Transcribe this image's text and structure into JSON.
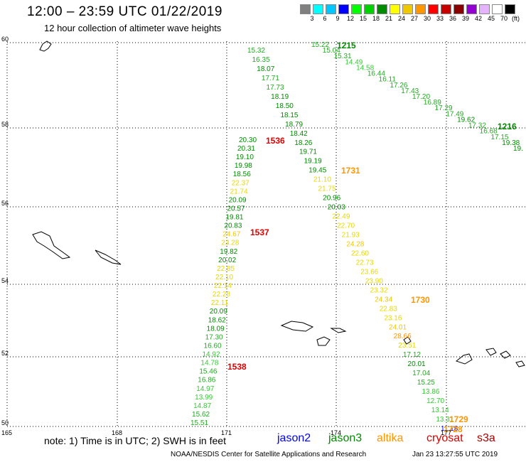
{
  "header": {
    "title": "12:00 – 23:59 UTC 01/22/2019",
    "subtitle": "12 hour collection of altimeter wave heights"
  },
  "colorbar": {
    "unit": "(ft)",
    "bins": [
      {
        "label": "3",
        "color": "#808080"
      },
      {
        "label": "6",
        "color": "#00ffff"
      },
      {
        "label": "9",
        "color": "#00c8ff"
      },
      {
        "label": "12",
        "color": "#0000ff"
      },
      {
        "label": "15",
        "color": "#00ff00"
      },
      {
        "label": "18",
        "color": "#00d200"
      },
      {
        "label": "21",
        "color": "#008c00"
      },
      {
        "label": "24",
        "color": "#ffff00"
      },
      {
        "label": "27",
        "color": "#f0c800"
      },
      {
        "label": "30",
        "color": "#ff9600"
      },
      {
        "label": "33",
        "color": "#ff0000"
      },
      {
        "label": "36",
        "color": "#c80000"
      },
      {
        "label": "39",
        "color": "#8b0000"
      },
      {
        "label": "42",
        "color": "#9400d3"
      },
      {
        "label": "45",
        "color": "#e6b4ff"
      },
      {
        "label": "70",
        "color": "#ffffff"
      },
      {
        "label": "",
        "color": "#000000"
      }
    ]
  },
  "map": {
    "lat_labels": [
      "60",
      "58",
      "56",
      "54",
      "52",
      "50"
    ],
    "lon_labels": [
      "165",
      "168",
      "171",
      "174",
      "177"
    ]
  },
  "note": "note: 1) Time is in UTC; 2) SWH is in feet",
  "satellites": [
    {
      "name": "jason2",
      "color": "#0000ff"
    },
    {
      "name": "jason3",
      "color": "#008c00"
    },
    {
      "name": "altika",
      "color": "#ff9600"
    },
    {
      "name": "cryosat",
      "color": "#dd0000"
    },
    {
      "name": "s3a",
      "color": "#aa0000"
    }
  ],
  "footer": {
    "credit": "NOAA/NESDIS Center for Satellite Applications and Research",
    "timestamp": "Jan 23 13:27:55 UTC 2019"
  },
  "tracks": [
    {
      "id": "track-left",
      "times": [
        {
          "label": "1536",
          "color": "#dd0000"
        },
        {
          "label": "1537",
          "color": "#dd0000"
        },
        {
          "label": "1538",
          "color": "#dd0000"
        }
      ],
      "values": [
        "20.30",
        "20.31",
        "19.10",
        "19.98",
        "18.56",
        "22.37",
        "21.74",
        "20.09",
        "20.57",
        "19.81",
        "20.83",
        "24.67",
        "23.28",
        "19.82",
        "20.02",
        "22.85",
        "22.10",
        "22.14",
        "22.28",
        "22.11",
        "20.09",
        "18.62",
        "18.09",
        "17.30",
        "16.60",
        "14.92",
        "14.78",
        "15.46",
        "16.86",
        "14.97",
        "13.99",
        "14.87",
        "15.62",
        "15.51"
      ]
    },
    {
      "id": "track-middle",
      "times": [
        {
          "label": "1731",
          "color": "#ff9600"
        },
        {
          "label": "1730",
          "color": "#ff9600"
        },
        {
          "label": "1729",
          "color": "#ff9600"
        },
        {
          "label": "1728",
          "color": "#ff9600"
        }
      ],
      "values": [
        "15.32",
        "16.35",
        "18.07",
        "17.71",
        "17.73",
        "18.19",
        "18.50",
        "18.15",
        "18.79",
        "18.42",
        "18.26",
        "19.71",
        "19.19",
        "19.45",
        "21.10",
        "21.75",
        "20.96",
        "20.03",
        "22.49",
        "22.70",
        "21.93",
        "24.28",
        "22.60",
        "22.73",
        "23.66",
        "23.90",
        "23.32",
        "24.34",
        "22.83",
        "23.16",
        "24.01",
        "28.66",
        "23.51",
        "17.12",
        "20.01",
        "17.04",
        "15.25",
        "13.86",
        "12.70",
        "13.14",
        "13.31",
        "11.18"
      ]
    },
    {
      "id": "track-right",
      "times": [
        {
          "label": "1215",
          "color": "#008c00"
        },
        {
          "label": "1216",
          "color": "#008c00"
        }
      ],
      "values": [
        "15.22",
        "15.04",
        "15.31",
        "14.49",
        "14.58",
        "16.44",
        "16.11",
        "17.26",
        "17.43",
        "17.20",
        "16.89",
        "17.29",
        "17.49",
        "19.62",
        "17.32",
        "16.68",
        "17.15",
        "19.38",
        "19."
      ]
    }
  ]
}
